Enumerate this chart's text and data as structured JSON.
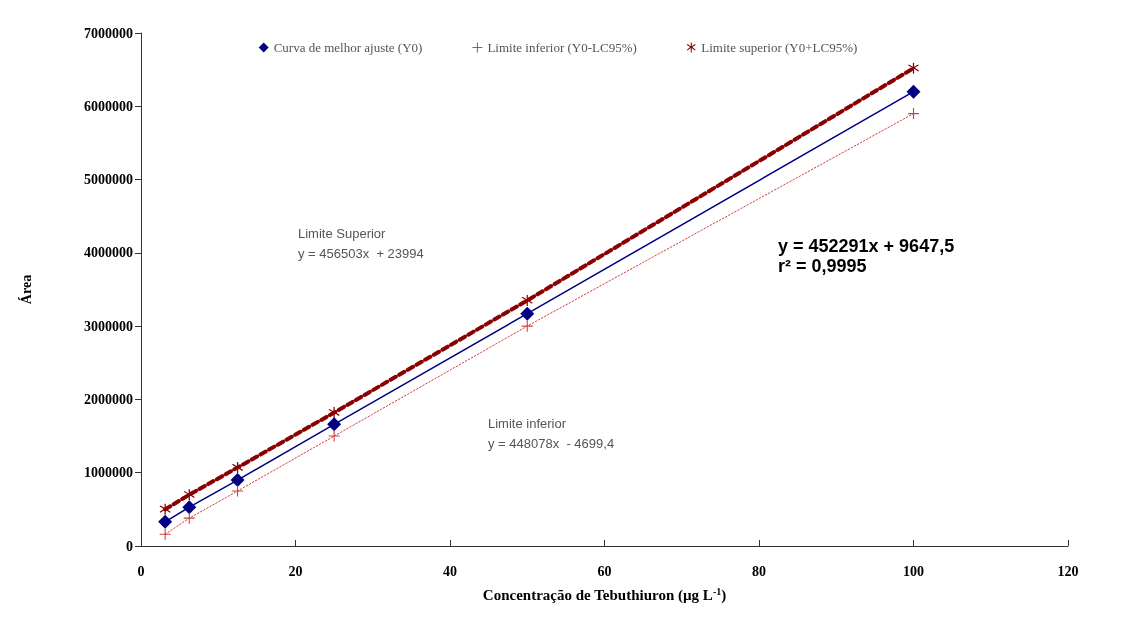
{
  "chart_data": {
    "type": "line",
    "xlabel": "Concentração de Tebuthiuron (µg L$^{-1}$)",
    "ylabel": "Área",
    "x": [
      3.125,
      6.25,
      12.5,
      25,
      50,
      100
    ],
    "series": [
      {
        "name": "Curva de melhor ajuste (Y0)",
        "color": "#000080",
        "marker": "diamond",
        "line_style": "solid",
        "values": [
          330000,
          530000,
          900000,
          1660000,
          3170000,
          6200000
        ]
      },
      {
        "name": "Limite inferior (Y0-LC95%)",
        "color": "#d04040",
        "marker": "cross",
        "line_style": "dotted",
        "values": [
          160000,
          380000,
          750000,
          1500000,
          3000000,
          5900000
        ]
      },
      {
        "name": "Limite superior (Y0+LC95%)",
        "color": "#8b0000",
        "marker": "star",
        "line_style": "dashed",
        "values": [
          500000,
          700000,
          1070000,
          1820000,
          3350000,
          6520000
        ]
      }
    ],
    "xlim": [
      0,
      120
    ],
    "xticks": [
      0,
      20,
      40,
      60,
      80,
      100,
      120
    ],
    "ylim": [
      0,
      7000000
    ],
    "yticks": [
      0,
      1000000,
      2000000,
      3000000,
      4000000,
      5000000,
      6000000,
      7000000
    ],
    "grid": false,
    "legend": "top",
    "annotations": [
      "Limite Superior\ny = 456503x  + 23994",
      "y = 452291x + 9647,5\nr² = 0,9995",
      "Limite inferior\ny = 448078x  - 4699,4"
    ]
  }
}
